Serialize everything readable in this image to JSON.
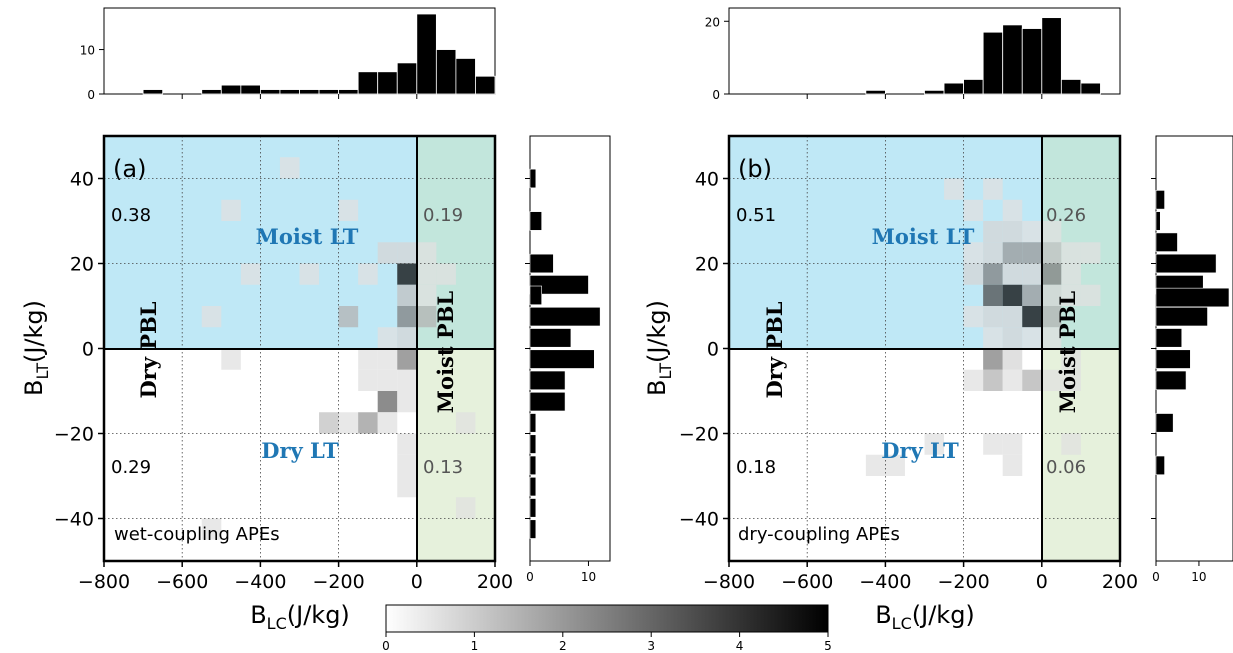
{
  "colors": {
    "moist_lt_region": "#bfe8f6",
    "moist_pbl_region": "#c9e4c2",
    "moist_lt_text": "#1f77b4",
    "dry_lt_text": "#1f77b4",
    "bar": "#000000"
  },
  "colorbar": {
    "ticks": [
      "0",
      "1",
      "2",
      "3",
      "4",
      "5"
    ],
    "min": 0,
    "max": 5,
    "colormap": "greys"
  },
  "chart_data": [
    {
      "id": "a",
      "type": "heatmap",
      "panel_tag": "(a)",
      "annotation": "wet-coupling APEs",
      "xlabel": "B_LC(J/kg)",
      "ylabel": "B_LT(J/kg)",
      "xlim": [
        -800,
        200
      ],
      "ylim": [
        -50,
        50
      ],
      "xticks": [
        "−800",
        "−600",
        "−400",
        "−200",
        "0",
        "200"
      ],
      "yticks": [
        "−40",
        "−20",
        "0",
        "20",
        "40"
      ],
      "grid": true,
      "region_labels": {
        "moist_lt": "Moist LT",
        "dry_lt": "Dry LT",
        "dry_pbl": "Dry PBL",
        "moist_pbl": "Moist PBL"
      },
      "fractions": {
        "upper_left": "0.38",
        "upper_right": "0.19",
        "lower_left": "0.29",
        "lower_right": "0.13"
      },
      "cells": [
        {
          "x": -325,
          "y": 42.5,
          "v": 0.6
        },
        {
          "x": -475,
          "y": 32.5,
          "v": 0.6
        },
        {
          "x": -175,
          "y": 32.5,
          "v": 0.6
        },
        {
          "x": -75,
          "y": 22.5,
          "v": 0.8
        },
        {
          "x": -25,
          "y": 22.5,
          "v": 0.8
        },
        {
          "x": 25,
          "y": 22.5,
          "v": 0.6
        },
        {
          "x": -425,
          "y": 17.5,
          "v": 0.6
        },
        {
          "x": -275,
          "y": 17.5,
          "v": 0.6
        },
        {
          "x": -125,
          "y": 17.5,
          "v": 0.6
        },
        {
          "x": -25,
          "y": 17.5,
          "v": 4.8
        },
        {
          "x": 25,
          "y": 17.5,
          "v": 0.6
        },
        {
          "x": 75,
          "y": 17.5,
          "v": 0.6
        },
        {
          "x": -25,
          "y": 12.5,
          "v": 1.2
        },
        {
          "x": 25,
          "y": 12.5,
          "v": 0.6
        },
        {
          "x": -525,
          "y": 7.5,
          "v": 0.6
        },
        {
          "x": -175,
          "y": 7.5,
          "v": 1.5
        },
        {
          "x": -25,
          "y": 7.5,
          "v": 2.5
        },
        {
          "x": 25,
          "y": 7.5,
          "v": 1.5
        },
        {
          "x": -75,
          "y": 2.5,
          "v": 0.6
        },
        {
          "x": -25,
          "y": 2.5,
          "v": 0.8
        },
        {
          "x": -475,
          "y": -2.5,
          "v": 0.6
        },
        {
          "x": -125,
          "y": -2.5,
          "v": 0.6
        },
        {
          "x": -75,
          "y": -2.5,
          "v": 0.6
        },
        {
          "x": -25,
          "y": -2.5,
          "v": 2.5
        },
        {
          "x": -125,
          "y": -7.5,
          "v": 0.6
        },
        {
          "x": -75,
          "y": -7.5,
          "v": 0.6
        },
        {
          "x": -25,
          "y": -7.5,
          "v": 0.6
        },
        {
          "x": -75,
          "y": -12.5,
          "v": 3.0
        },
        {
          "x": -25,
          "y": -12.5,
          "v": 0.6
        },
        {
          "x": -225,
          "y": -17.5,
          "v": 1.2
        },
        {
          "x": -175,
          "y": -17.5,
          "v": 0.6
        },
        {
          "x": -125,
          "y": -17.5,
          "v": 2.0
        },
        {
          "x": -75,
          "y": -17.5,
          "v": 0.6
        },
        {
          "x": 125,
          "y": -17.5,
          "v": 0.6
        },
        {
          "x": -25,
          "y": -22.5,
          "v": 0.6
        },
        {
          "x": -25,
          "y": -27.5,
          "v": 0.6
        },
        {
          "x": -25,
          "y": -32.5,
          "v": 0.6
        },
        {
          "x": 125,
          "y": -37.5,
          "v": 0.6
        },
        {
          "x": -525,
          "y": -42.5,
          "v": 0.6
        }
      ],
      "top_hist": {
        "yticks": [
          "0",
          "10"
        ],
        "ymax": 18,
        "bins": [
          {
            "x": -675,
            "c": 1
          },
          {
            "x": -525,
            "c": 1
          },
          {
            "x": -475,
            "c": 2
          },
          {
            "x": -425,
            "c": 2
          },
          {
            "x": -375,
            "c": 1
          },
          {
            "x": -325,
            "c": 1
          },
          {
            "x": -275,
            "c": 1
          },
          {
            "x": -225,
            "c": 1
          },
          {
            "x": -175,
            "c": 1
          },
          {
            "x": -125,
            "c": 5
          },
          {
            "x": -75,
            "c": 5
          },
          {
            "x": -25,
            "c": 7
          },
          {
            "x": 25,
            "c": 18
          },
          {
            "x": 75,
            "c": 10
          },
          {
            "x": 125,
            "c": 8
          },
          {
            "x": 175,
            "c": 4
          }
        ]
      },
      "right_hist": {
        "xticks": [
          "0",
          "10"
        ],
        "xmax": 13,
        "bins": [
          {
            "y": 40,
            "c": 1
          },
          {
            "y": 30,
            "c": 2
          },
          {
            "y": 20,
            "c": 4
          },
          {
            "y": 15,
            "c": 10
          },
          {
            "y": 12.5,
            "c": 2
          },
          {
            "y": 7.5,
            "c": 12
          },
          {
            "y": 2.5,
            "c": 7
          },
          {
            "y": -2.5,
            "c": 11
          },
          {
            "y": -7.5,
            "c": 6
          },
          {
            "y": -12.5,
            "c": 6
          },
          {
            "y": -17.5,
            "c": 1
          },
          {
            "y": -22.5,
            "c": 1
          },
          {
            "y": -27.5,
            "c": 1
          },
          {
            "y": -32.5,
            "c": 1
          },
          {
            "y": -37.5,
            "c": 1
          },
          {
            "y": -42.5,
            "c": 1
          }
        ]
      }
    },
    {
      "id": "b",
      "type": "heatmap",
      "panel_tag": "(b)",
      "annotation": "dry-coupling APEs",
      "xlabel": "B_LC(J/kg)",
      "ylabel": "B_LT(J/kg)",
      "xlim": [
        -800,
        200
      ],
      "ylim": [
        -50,
        50
      ],
      "xticks": [
        "−800",
        "−600",
        "−400",
        "−200",
        "0",
        "200"
      ],
      "yticks": [
        "−40",
        "−20",
        "0",
        "20",
        "40"
      ],
      "grid": true,
      "region_labels": {
        "moist_lt": "Moist LT",
        "dry_lt": "Dry LT",
        "dry_pbl": "Dry PBL",
        "moist_pbl": "Moist PBL"
      },
      "fractions": {
        "upper_left": "0.51",
        "upper_right": "0.26",
        "lower_left": "0.18",
        "lower_right": "0.06"
      },
      "cells": [
        {
          "x": -225,
          "y": 37.5,
          "v": 0.6
        },
        {
          "x": -125,
          "y": 37.5,
          "v": 0.6
        },
        {
          "x": -175,
          "y": 32.5,
          "v": 0.6
        },
        {
          "x": -75,
          "y": 32.5,
          "v": 0.6
        },
        {
          "x": -125,
          "y": 27.5,
          "v": 0.8
        },
        {
          "x": -75,
          "y": 27.5,
          "v": 0.8
        },
        {
          "x": -25,
          "y": 27.5,
          "v": 0.6
        },
        {
          "x": 25,
          "y": 27.5,
          "v": 0.6
        },
        {
          "x": -175,
          "y": 22.5,
          "v": 0.6
        },
        {
          "x": -125,
          "y": 22.5,
          "v": 0.8
        },
        {
          "x": -75,
          "y": 22.5,
          "v": 2.0
        },
        {
          "x": -25,
          "y": 22.5,
          "v": 2.0
        },
        {
          "x": 25,
          "y": 22.5,
          "v": 1.2
        },
        {
          "x": 75,
          "y": 22.5,
          "v": 0.6
        },
        {
          "x": 125,
          "y": 22.5,
          "v": 0.6
        },
        {
          "x": -175,
          "y": 17.5,
          "v": 0.8
        },
        {
          "x": -125,
          "y": 17.5,
          "v": 2.5
        },
        {
          "x": -75,
          "y": 17.5,
          "v": 0.8
        },
        {
          "x": -25,
          "y": 17.5,
          "v": 0.8
        },
        {
          "x": 25,
          "y": 17.5,
          "v": 2.5
        },
        {
          "x": 75,
          "y": 17.5,
          "v": 0.6
        },
        {
          "x": -125,
          "y": 12.5,
          "v": 3.5
        },
        {
          "x": -75,
          "y": 12.5,
          "v": 4.8
        },
        {
          "x": -25,
          "y": 12.5,
          "v": 2.0
        },
        {
          "x": 25,
          "y": 12.5,
          "v": 0.8
        },
        {
          "x": 75,
          "y": 12.5,
          "v": 0.6
        },
        {
          "x": 125,
          "y": 12.5,
          "v": 0.6
        },
        {
          "x": -175,
          "y": 7.5,
          "v": 0.6
        },
        {
          "x": -125,
          "y": 7.5,
          "v": 0.8
        },
        {
          "x": -75,
          "y": 7.5,
          "v": 0.8
        },
        {
          "x": -25,
          "y": 7.5,
          "v": 4.8
        },
        {
          "x": 25,
          "y": 7.5,
          "v": 1.5
        },
        {
          "x": -125,
          "y": 2.5,
          "v": 0.6
        },
        {
          "x": -75,
          "y": 2.5,
          "v": 0.8
        },
        {
          "x": -25,
          "y": 2.5,
          "v": 0.6
        },
        {
          "x": 25,
          "y": 2.5,
          "v": 0.6
        },
        {
          "x": -125,
          "y": -2.5,
          "v": 2.5
        },
        {
          "x": -75,
          "y": -2.5,
          "v": 0.8
        },
        {
          "x": 75,
          "y": -2.5,
          "v": 0.6
        },
        {
          "x": -175,
          "y": -7.5,
          "v": 0.6
        },
        {
          "x": -125,
          "y": -7.5,
          "v": 1.5
        },
        {
          "x": -75,
          "y": -7.5,
          "v": 0.6
        },
        {
          "x": -25,
          "y": -7.5,
          "v": 1.5
        },
        {
          "x": 25,
          "y": -7.5,
          "v": 0.6
        },
        {
          "x": 75,
          "y": -7.5,
          "v": 0.6
        },
        {
          "x": -275,
          "y": -22.5,
          "v": 0.6
        },
        {
          "x": -125,
          "y": -22.5,
          "v": 0.6
        },
        {
          "x": -75,
          "y": -22.5,
          "v": 0.6
        },
        {
          "x": 75,
          "y": -22.5,
          "v": 0.6
        },
        {
          "x": -375,
          "y": -27.5,
          "v": 0.6
        },
        {
          "x": -425,
          "y": -27.5,
          "v": 0.6
        },
        {
          "x": -75,
          "y": -27.5,
          "v": 0.6
        }
      ],
      "top_hist": {
        "yticks": [
          "0",
          "20"
        ],
        "ymax": 22,
        "bins": [
          {
            "x": -425,
            "c": 1
          },
          {
            "x": -275,
            "c": 1
          },
          {
            "x": -225,
            "c": 3
          },
          {
            "x": -175,
            "c": 4
          },
          {
            "x": -125,
            "c": 17
          },
          {
            "x": -75,
            "c": 19
          },
          {
            "x": -25,
            "c": 18
          },
          {
            "x": 25,
            "c": 21
          },
          {
            "x": 75,
            "c": 4
          },
          {
            "x": 125,
            "c": 3
          }
        ]
      },
      "right_hist": {
        "xticks": [
          "0",
          "10"
        ],
        "xmax": 17,
        "bins": [
          {
            "y": 35,
            "c": 2
          },
          {
            "y": 30,
            "c": 1
          },
          {
            "y": 25,
            "c": 5
          },
          {
            "y": 20,
            "c": 14
          },
          {
            "y": 15,
            "c": 11
          },
          {
            "y": 12,
            "c": 17
          },
          {
            "y": 7.5,
            "c": 12
          },
          {
            "y": 2.5,
            "c": 6
          },
          {
            "y": -2.5,
            "c": 8
          },
          {
            "y": -7.5,
            "c": 7
          },
          {
            "y": -17.5,
            "c": 4
          },
          {
            "y": -27.5,
            "c": 2
          }
        ]
      }
    }
  ]
}
